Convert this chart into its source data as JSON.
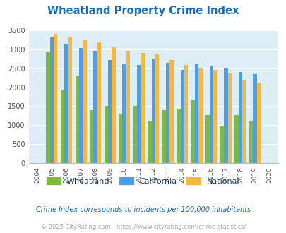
{
  "title": "Wheatland Property Crime Index",
  "years": [
    2004,
    2005,
    2006,
    2007,
    2008,
    2009,
    2010,
    2011,
    2012,
    2013,
    2014,
    2015,
    2016,
    2017,
    2018,
    2019,
    2020
  ],
  "wheatland": [
    null,
    2920,
    1920,
    2280,
    1390,
    1500,
    1290,
    1500,
    1090,
    1390,
    1430,
    1680,
    1270,
    980,
    1260,
    1090,
    null
  ],
  "california": [
    null,
    3310,
    3150,
    3040,
    2950,
    2720,
    2620,
    2580,
    2760,
    2650,
    2460,
    2610,
    2550,
    2500,
    2400,
    2350,
    null
  ],
  "national": [
    null,
    3400,
    3330,
    3260,
    3200,
    3050,
    2960,
    2900,
    2860,
    2720,
    2590,
    2490,
    2450,
    2380,
    2200,
    2120,
    null
  ],
  "wheatland_color": "#7cbb3c",
  "california_color": "#4d9de8",
  "national_color": "#f5b942",
  "bg_color": "#ddeef6",
  "ylim": [
    0,
    3500
  ],
  "yticks": [
    0,
    500,
    1000,
    1500,
    2000,
    2500,
    3000,
    3500
  ],
  "footnote1": "Crime Index corresponds to incidents per 100,000 inhabitants",
  "footnote2": "© 2025 CityRating.com - https://www.cityrating.com/crime-statistics/",
  "title_color": "#1a6cb5",
  "footnote1_color": "#1a6cb5",
  "footnote2_color": "#aaaaaa",
  "legend_text_color": "#1a4060"
}
